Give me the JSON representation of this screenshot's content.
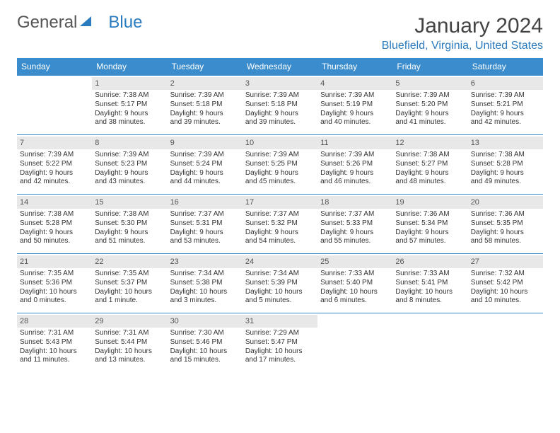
{
  "logo": {
    "part1": "General",
    "part2": "Blue"
  },
  "title": "January 2024",
  "location": "Bluefield, Virginia, United States",
  "colors": {
    "header_bg": "#3b8ccc",
    "header_fg": "#ffffff",
    "daynum_bg": "#e8e8e8",
    "border": "#3b8ccc",
    "accent": "#2b7bbf"
  },
  "weekdays": [
    "Sunday",
    "Monday",
    "Tuesday",
    "Wednesday",
    "Thursday",
    "Friday",
    "Saturday"
  ],
  "weeks": [
    [
      {
        "empty": true
      },
      {
        "day": "1",
        "sunrise": "Sunrise: 7:38 AM",
        "sunset": "Sunset: 5:17 PM",
        "daylight1": "Daylight: 9 hours",
        "daylight2": "and 38 minutes."
      },
      {
        "day": "2",
        "sunrise": "Sunrise: 7:39 AM",
        "sunset": "Sunset: 5:18 PM",
        "daylight1": "Daylight: 9 hours",
        "daylight2": "and 39 minutes."
      },
      {
        "day": "3",
        "sunrise": "Sunrise: 7:39 AM",
        "sunset": "Sunset: 5:18 PM",
        "daylight1": "Daylight: 9 hours",
        "daylight2": "and 39 minutes."
      },
      {
        "day": "4",
        "sunrise": "Sunrise: 7:39 AM",
        "sunset": "Sunset: 5:19 PM",
        "daylight1": "Daylight: 9 hours",
        "daylight2": "and 40 minutes."
      },
      {
        "day": "5",
        "sunrise": "Sunrise: 7:39 AM",
        "sunset": "Sunset: 5:20 PM",
        "daylight1": "Daylight: 9 hours",
        "daylight2": "and 41 minutes."
      },
      {
        "day": "6",
        "sunrise": "Sunrise: 7:39 AM",
        "sunset": "Sunset: 5:21 PM",
        "daylight1": "Daylight: 9 hours",
        "daylight2": "and 42 minutes."
      }
    ],
    [
      {
        "day": "7",
        "sunrise": "Sunrise: 7:39 AM",
        "sunset": "Sunset: 5:22 PM",
        "daylight1": "Daylight: 9 hours",
        "daylight2": "and 42 minutes."
      },
      {
        "day": "8",
        "sunrise": "Sunrise: 7:39 AM",
        "sunset": "Sunset: 5:23 PM",
        "daylight1": "Daylight: 9 hours",
        "daylight2": "and 43 minutes."
      },
      {
        "day": "9",
        "sunrise": "Sunrise: 7:39 AM",
        "sunset": "Sunset: 5:24 PM",
        "daylight1": "Daylight: 9 hours",
        "daylight2": "and 44 minutes."
      },
      {
        "day": "10",
        "sunrise": "Sunrise: 7:39 AM",
        "sunset": "Sunset: 5:25 PM",
        "daylight1": "Daylight: 9 hours",
        "daylight2": "and 45 minutes."
      },
      {
        "day": "11",
        "sunrise": "Sunrise: 7:39 AM",
        "sunset": "Sunset: 5:26 PM",
        "daylight1": "Daylight: 9 hours",
        "daylight2": "and 46 minutes."
      },
      {
        "day": "12",
        "sunrise": "Sunrise: 7:38 AM",
        "sunset": "Sunset: 5:27 PM",
        "daylight1": "Daylight: 9 hours",
        "daylight2": "and 48 minutes."
      },
      {
        "day": "13",
        "sunrise": "Sunrise: 7:38 AM",
        "sunset": "Sunset: 5:28 PM",
        "daylight1": "Daylight: 9 hours",
        "daylight2": "and 49 minutes."
      }
    ],
    [
      {
        "day": "14",
        "sunrise": "Sunrise: 7:38 AM",
        "sunset": "Sunset: 5:28 PM",
        "daylight1": "Daylight: 9 hours",
        "daylight2": "and 50 minutes."
      },
      {
        "day": "15",
        "sunrise": "Sunrise: 7:38 AM",
        "sunset": "Sunset: 5:30 PM",
        "daylight1": "Daylight: 9 hours",
        "daylight2": "and 51 minutes."
      },
      {
        "day": "16",
        "sunrise": "Sunrise: 7:37 AM",
        "sunset": "Sunset: 5:31 PM",
        "daylight1": "Daylight: 9 hours",
        "daylight2": "and 53 minutes."
      },
      {
        "day": "17",
        "sunrise": "Sunrise: 7:37 AM",
        "sunset": "Sunset: 5:32 PM",
        "daylight1": "Daylight: 9 hours",
        "daylight2": "and 54 minutes."
      },
      {
        "day": "18",
        "sunrise": "Sunrise: 7:37 AM",
        "sunset": "Sunset: 5:33 PM",
        "daylight1": "Daylight: 9 hours",
        "daylight2": "and 55 minutes."
      },
      {
        "day": "19",
        "sunrise": "Sunrise: 7:36 AM",
        "sunset": "Sunset: 5:34 PM",
        "daylight1": "Daylight: 9 hours",
        "daylight2": "and 57 minutes."
      },
      {
        "day": "20",
        "sunrise": "Sunrise: 7:36 AM",
        "sunset": "Sunset: 5:35 PM",
        "daylight1": "Daylight: 9 hours",
        "daylight2": "and 58 minutes."
      }
    ],
    [
      {
        "day": "21",
        "sunrise": "Sunrise: 7:35 AM",
        "sunset": "Sunset: 5:36 PM",
        "daylight1": "Daylight: 10 hours",
        "daylight2": "and 0 minutes."
      },
      {
        "day": "22",
        "sunrise": "Sunrise: 7:35 AM",
        "sunset": "Sunset: 5:37 PM",
        "daylight1": "Daylight: 10 hours",
        "daylight2": "and 1 minute."
      },
      {
        "day": "23",
        "sunrise": "Sunrise: 7:34 AM",
        "sunset": "Sunset: 5:38 PM",
        "daylight1": "Daylight: 10 hours",
        "daylight2": "and 3 minutes."
      },
      {
        "day": "24",
        "sunrise": "Sunrise: 7:34 AM",
        "sunset": "Sunset: 5:39 PM",
        "daylight1": "Daylight: 10 hours",
        "daylight2": "and 5 minutes."
      },
      {
        "day": "25",
        "sunrise": "Sunrise: 7:33 AM",
        "sunset": "Sunset: 5:40 PM",
        "daylight1": "Daylight: 10 hours",
        "daylight2": "and 6 minutes."
      },
      {
        "day": "26",
        "sunrise": "Sunrise: 7:33 AM",
        "sunset": "Sunset: 5:41 PM",
        "daylight1": "Daylight: 10 hours",
        "daylight2": "and 8 minutes."
      },
      {
        "day": "27",
        "sunrise": "Sunrise: 7:32 AM",
        "sunset": "Sunset: 5:42 PM",
        "daylight1": "Daylight: 10 hours",
        "daylight2": "and 10 minutes."
      }
    ],
    [
      {
        "day": "28",
        "sunrise": "Sunrise: 7:31 AM",
        "sunset": "Sunset: 5:43 PM",
        "daylight1": "Daylight: 10 hours",
        "daylight2": "and 11 minutes."
      },
      {
        "day": "29",
        "sunrise": "Sunrise: 7:31 AM",
        "sunset": "Sunset: 5:44 PM",
        "daylight1": "Daylight: 10 hours",
        "daylight2": "and 13 minutes."
      },
      {
        "day": "30",
        "sunrise": "Sunrise: 7:30 AM",
        "sunset": "Sunset: 5:46 PM",
        "daylight1": "Daylight: 10 hours",
        "daylight2": "and 15 minutes."
      },
      {
        "day": "31",
        "sunrise": "Sunrise: 7:29 AM",
        "sunset": "Sunset: 5:47 PM",
        "daylight1": "Daylight: 10 hours",
        "daylight2": "and 17 minutes."
      },
      {
        "empty": true
      },
      {
        "empty": true
      },
      {
        "empty": true
      }
    ]
  ]
}
